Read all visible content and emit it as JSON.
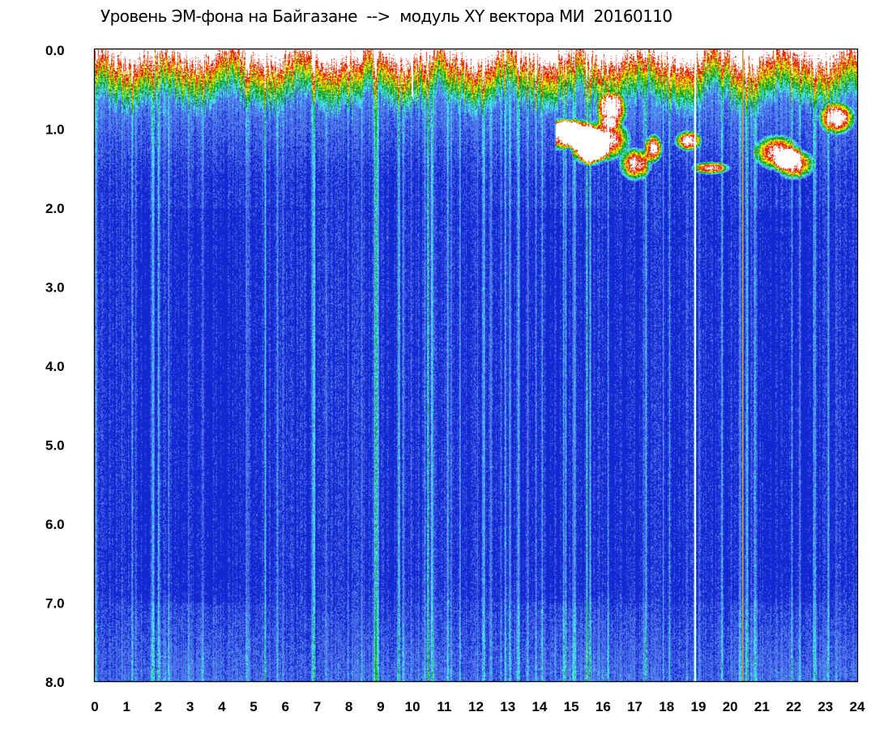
{
  "title": "Уровень ЭМ-фона на Байгазане  -->  модуль XY вектора МИ  20160110",
  "chart_data": {
    "type": "heatmap",
    "title": "Уровень ЭМ-фона на Байгазане  -->  модуль XY вектора МИ  20160110",
    "xlabel": "",
    "ylabel": "",
    "x_range": [
      0,
      24
    ],
    "y_range": [
      0.0,
      8.0
    ],
    "y_inverted": true,
    "x_ticks": [
      "0",
      "1",
      "2",
      "3",
      "4",
      "5",
      "6",
      "7",
      "8",
      "9",
      "10",
      "11",
      "12",
      "13",
      "14",
      "15",
      "16",
      "17",
      "18",
      "19",
      "20",
      "21",
      "22",
      "23",
      "24"
    ],
    "y_ticks": [
      "0.0",
      "1.0",
      "2.0",
      "3.0",
      "4.0",
      "5.0",
      "6.0",
      "7.0",
      "8.0"
    ],
    "colorscale": [
      "#1428d2",
      "#4f78ec",
      "#46e6ea",
      "#10a020",
      "#e8e800",
      "#e81e00",
      "#ffffff"
    ],
    "grid": false,
    "legend": "none",
    "features": [
      {
        "kind": "hot_top_band",
        "x_start": 0,
        "x_end": 24,
        "y_top": 0.0,
        "y_bottom": 0.4
      },
      {
        "kind": "hot_patches",
        "x_start": 14.5,
        "x_end": 24,
        "y_top": 0.6,
        "y_bottom": 1.6
      },
      {
        "kind": "white_column",
        "x": 18.9
      },
      {
        "kind": "orange_column",
        "x": 20.4
      },
      {
        "kind": "white_column",
        "x": 10.0,
        "y_bottom": 0.6
      }
    ]
  }
}
